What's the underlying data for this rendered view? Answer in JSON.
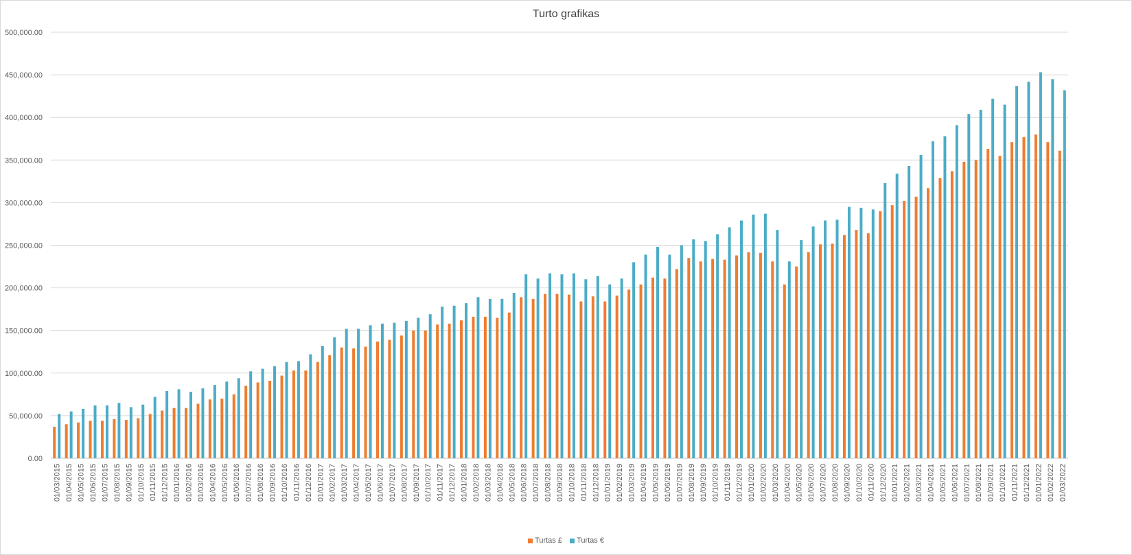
{
  "chart_data": {
    "type": "bar",
    "title": "Turto grafikas",
    "xlabel": "",
    "ylabel": "",
    "ylim": [
      0,
      500000
    ],
    "ytick_values": [
      0,
      50000,
      100000,
      150000,
      200000,
      250000,
      300000,
      350000,
      400000,
      450000,
      500000
    ],
    "ytick_labels": [
      "0.00",
      "50,000.00",
      "100,000.00",
      "150,000.00",
      "200,000.00",
      "250,000.00",
      "300,000.00",
      "350,000.00",
      "400,000.00",
      "450,000.00",
      "500,000.00"
    ],
    "grid": true,
    "legend_position": "bottom",
    "categories": [
      "01/03/2015",
      "01/04/2015",
      "01/05/2015",
      "01/06/2015",
      "01/07/2015",
      "01/08/2015",
      "01/09/2015",
      "01/10/2015",
      "01/11/2015",
      "01/12/2015",
      "01/01/2016",
      "01/02/2016",
      "01/03/2016",
      "01/04/2016",
      "01/05/2016",
      "01/06/2016",
      "01/07/2016",
      "01/08/2016",
      "01/09/2016",
      "01/10/2016",
      "01/11/2016",
      "01/12/2016",
      "01/01/2017",
      "01/02/2017",
      "01/03/2017",
      "01/04/2017",
      "01/05/2017",
      "01/06/2017",
      "01/07/2017",
      "01/08/2017",
      "01/09/2017",
      "01/10/2017",
      "01/11/2017",
      "01/12/2017",
      "01/01/2018",
      "01/02/2018",
      "01/03/2018",
      "01/04/2018",
      "01/05/2018",
      "01/06/2018",
      "01/07/2018",
      "01/08/2018",
      "01/09/2018",
      "01/10/2018",
      "01/11/2018",
      "01/12/2018",
      "01/01/2019",
      "01/02/2019",
      "01/03/2019",
      "01/04/2019",
      "01/05/2019",
      "01/06/2019",
      "01/07/2019",
      "01/08/2019",
      "01/09/2019",
      "01/10/2019",
      "01/11/2019",
      "01/12/2019",
      "01/01/2020",
      "01/02/2020",
      "01/03/2020",
      "01/04/2020",
      "01/05/2020",
      "01/06/2020",
      "01/07/2020",
      "01/08/2020",
      "01/09/2020",
      "01/10/2020",
      "01/11/2020",
      "01/12/2020",
      "01/01/2021",
      "01/02/2021",
      "01/03/2021",
      "01/04/2021",
      "01/05/2021",
      "01/06/2021",
      "01/07/2021",
      "01/08/2021",
      "01/09/2021",
      "01/10/2021",
      "01/11/2021",
      "01/12/2021",
      "01/01/2022",
      "01/02/2022",
      "01/03/2022"
    ],
    "series": [
      {
        "name": "Turtas £",
        "color": "#ED7D31",
        "values": [
          37000,
          40000,
          42000,
          44000,
          44000,
          46000,
          45000,
          47000,
          52000,
          56000,
          59000,
          59000,
          64000,
          69000,
          70000,
          75000,
          85000,
          89000,
          91000,
          97000,
          103000,
          103000,
          113000,
          121000,
          130000,
          129000,
          131000,
          137000,
          139000,
          144000,
          150000,
          150000,
          157000,
          158000,
          162000,
          166000,
          166000,
          165000,
          171000,
          189000,
          187000,
          193000,
          193000,
          192000,
          184000,
          190000,
          184000,
          191000,
          198000,
          204000,
          212000,
          211000,
          222000,
          235000,
          231000,
          234000,
          233000,
          238000,
          242000,
          241000,
          231000,
          204000,
          225000,
          242000,
          251000,
          252000,
          262000,
          268000,
          264000,
          290000,
          297000,
          302000,
          307000,
          317000,
          329000,
          337000,
          348000,
          350000,
          363000,
          355000,
          371000,
          377000,
          380000,
          371000,
          361000
        ]
      },
      {
        "name": "Turtas €",
        "color": "#4BACC6",
        "values": [
          52000,
          55000,
          58000,
          62000,
          62000,
          65000,
          60000,
          63000,
          72000,
          79000,
          81000,
          78000,
          82000,
          86000,
          90000,
          94000,
          102000,
          105000,
          108000,
          113000,
          114000,
          122000,
          132000,
          142000,
          152000,
          152000,
          156000,
          158000,
          159000,
          161000,
          165000,
          169000,
          178000,
          179000,
          182000,
          189000,
          187000,
          187000,
          194000,
          216000,
          211000,
          217000,
          216000,
          217000,
          210000,
          214000,
          204000,
          211000,
          230000,
          239000,
          248000,
          239000,
          250000,
          257000,
          255000,
          263000,
          271000,
          279000,
          286000,
          287000,
          268000,
          231000,
          256000,
          272000,
          279000,
          280000,
          295000,
          294000,
          292000,
          323000,
          334000,
          343000,
          356000,
          372000,
          378000,
          391000,
          404000,
          409000,
          422000,
          415000,
          437000,
          442000,
          453000,
          445000,
          432000
        ]
      }
    ]
  }
}
